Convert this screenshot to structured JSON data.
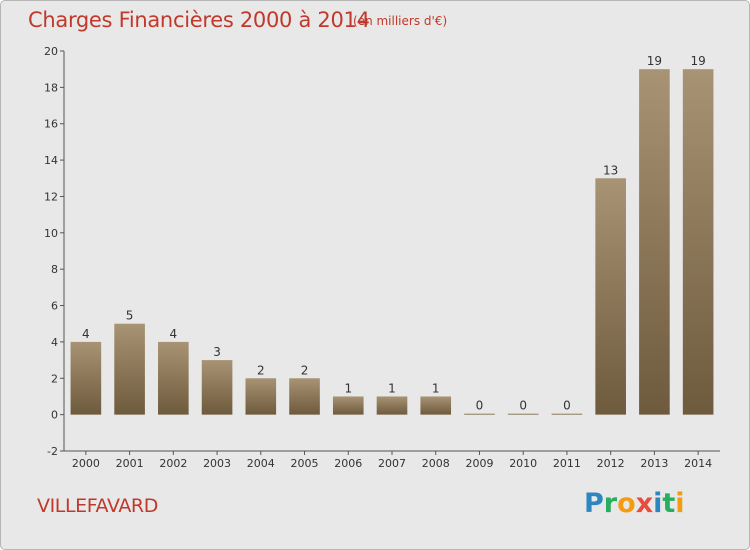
{
  "header": {
    "title": "Charges Financières 2000 à 2014",
    "subtitle": "(en milliers d'€)"
  },
  "footer": {
    "commune": "VILLEFAVARD",
    "brand_letters": [
      "P",
      "r",
      "o",
      "x",
      "i",
      "t",
      "i"
    ],
    "brand_colors": [
      "#2e86c1",
      "#27ae60",
      "#f39c12",
      "#e74c3c",
      "#2e86c1",
      "#27ae60",
      "#f39c12"
    ]
  },
  "colors": {
    "title": "#c0392b",
    "bar_top": "#a89474",
    "bar_bottom": "#6e5a3c",
    "axis": "#555555"
  },
  "chart_data": {
    "type": "bar",
    "categories": [
      "2000",
      "2001",
      "2002",
      "2003",
      "2004",
      "2005",
      "2006",
      "2007",
      "2008",
      "2009",
      "2010",
      "2011",
      "2012",
      "2013",
      "2014"
    ],
    "values": [
      4,
      5,
      4,
      3,
      2,
      2,
      1,
      1,
      1,
      0,
      0,
      0,
      13,
      19,
      19
    ],
    "labels": [
      "4",
      "5",
      "4",
      "3",
      "2",
      "2",
      "1",
      "1",
      "1",
      "0",
      "0",
      "0",
      "13",
      "19",
      "19"
    ],
    "yticks": [
      -2,
      0,
      2,
      4,
      6,
      8,
      10,
      12,
      14,
      16,
      18,
      20
    ],
    "ylim": [
      -2,
      20
    ],
    "grid": false
  }
}
